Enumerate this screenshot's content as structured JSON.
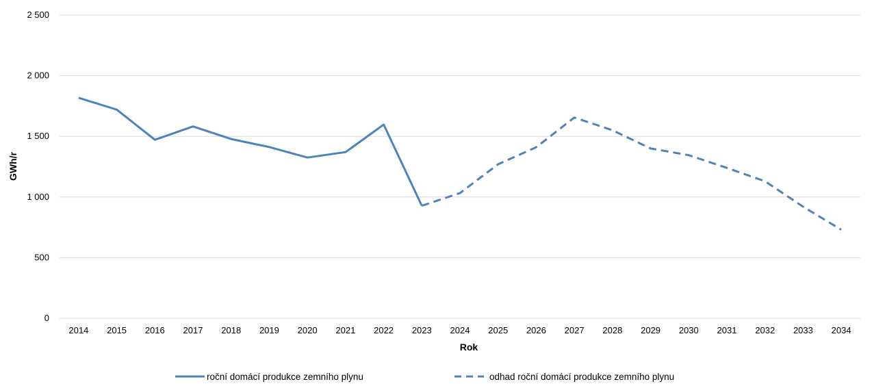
{
  "chart_data": {
    "type": "line",
    "title": "",
    "xlabel": "Rok",
    "ylabel": "GWh/r",
    "ylim": [
      0,
      2500
    ],
    "yticks": [
      {
        "value": 0,
        "label": "0"
      },
      {
        "value": 500,
        "label": "500"
      },
      {
        "value": 1000,
        "label": "1 000"
      },
      {
        "value": 1500,
        "label": "1 500"
      },
      {
        "value": 2000,
        "label": "2 000"
      },
      {
        "value": 2500,
        "label": "2 500"
      }
    ],
    "grid": true,
    "legend_position": "bottom",
    "categories": [
      "2014",
      "2015",
      "2016",
      "2017",
      "2018",
      "2019",
      "2020",
      "2021",
      "2022",
      "2023",
      "2024",
      "2025",
      "2026",
      "2027",
      "2028",
      "2029",
      "2030",
      "2031",
      "2032",
      "2033",
      "2034"
    ],
    "series": [
      {
        "name": "roční domácí produkce zemního plynu",
        "color": "#4f81bd",
        "dash": "solid",
        "values": [
          1818,
          1720,
          1472,
          1582,
          1478,
          1412,
          1325,
          1370,
          1597,
          928,
          null,
          null,
          null,
          null,
          null,
          null,
          null,
          null,
          null,
          null,
          null
        ]
      },
      {
        "name": "odhad roční domácí produkce zemního plynu",
        "color": "#4f81bd",
        "dash": "dashed",
        "values": [
          null,
          null,
          null,
          null,
          null,
          null,
          null,
          null,
          null,
          928,
          1032,
          1270,
          1410,
          1655,
          1550,
          1400,
          1345,
          1240,
          1130,
          920,
          730
        ]
      }
    ]
  }
}
